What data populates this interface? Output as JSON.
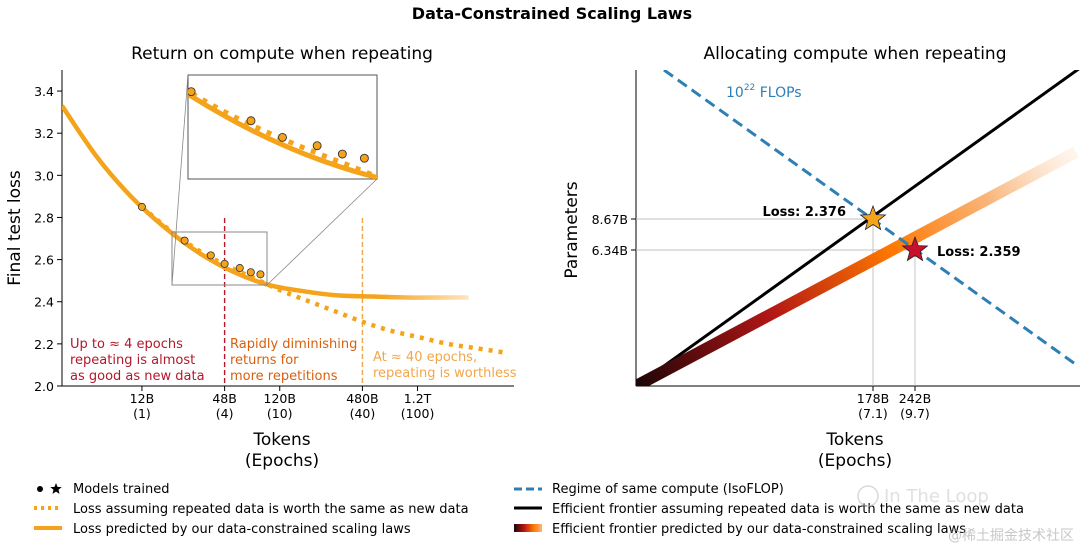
{
  "figure_title": "Data-Constrained Scaling Laws",
  "watermark": {
    "line1": "In The Loop",
    "line2": "@稀土掘金技术社区"
  },
  "legend": {
    "left": [
      {
        "marker": "dot-star",
        "label": "Models trained"
      },
      {
        "marker": "dotted-orange",
        "label": "Loss assuming repeated data is worth the same as new data"
      },
      {
        "marker": "solid-orange",
        "label": "Loss predicted by our data-constrained scaling laws"
      }
    ],
    "right": [
      {
        "marker": "dashed-blue",
        "label": "Regime of same compute (IsoFLOP)"
      },
      {
        "marker": "solid-black",
        "label": "Efficient frontier assuming repeated data is worth the same as new data"
      },
      {
        "marker": "gradient",
        "label": "Efficient frontier predicted by our data-constrained scaling laws"
      }
    ]
  },
  "colors": {
    "orange": "#f5a31a",
    "dark_red": "#b2182b",
    "mid_orange": "#e08a2a",
    "light_orange": "#f2a64a",
    "blue": "#2e7fb5",
    "black": "#000000",
    "grid": "#bbbbbb"
  },
  "chart_data": [
    {
      "type": "line",
      "title": "Return on compute when repeating",
      "xlabel": "Tokens\n(Epochs)",
      "ylabel": "Final test loss",
      "ylim": [
        2.0,
        3.5
      ],
      "yticks": [
        2.0,
        2.2,
        2.4,
        2.6,
        2.8,
        3.0,
        3.2,
        3.4
      ],
      "xticks": [
        {
          "tokens": "12B",
          "epochs": "(1)",
          "log10_tokens": 10.08
        },
        {
          "tokens": "48B",
          "epochs": "(4)",
          "log10_tokens": 10.68
        },
        {
          "tokens": "120B",
          "epochs": "(10)",
          "log10_tokens": 11.08
        },
        {
          "tokens": "480B",
          "epochs": "(40)",
          "log10_tokens": 11.68
        },
        {
          "tokens": "1.2T",
          "epochs": "(100)",
          "log10_tokens": 12.08
        }
      ],
      "xlim_log10": [
        9.5,
        12.78
      ],
      "series": [
        {
          "name": "Loss predicted by our data-constrained scaling laws",
          "style": "solid",
          "color": "#f5a31a",
          "points": [
            [
              9.5,
              3.33
            ],
            [
              9.75,
              3.09
            ],
            [
              10.0,
              2.9
            ],
            [
              10.25,
              2.75
            ],
            [
              10.5,
              2.63
            ],
            [
              10.75,
              2.54
            ],
            [
              11.0,
              2.48
            ],
            [
              11.25,
              2.45
            ],
            [
              11.5,
              2.43
            ],
            [
              11.75,
              2.425
            ],
            [
              12.0,
              2.42
            ],
            [
              12.3,
              2.42
            ],
            [
              12.45,
              2.42
            ]
          ]
        },
        {
          "name": "Loss assuming repeated data is worth the same as new data",
          "style": "dotted",
          "color": "#f5a31a",
          "points": [
            [
              10.08,
              2.85
            ],
            [
              10.3,
              2.73
            ],
            [
              10.5,
              2.64
            ],
            [
              10.7,
              2.57
            ],
            [
              10.9,
              2.51
            ],
            [
              11.1,
              2.45
            ],
            [
              11.3,
              2.4
            ],
            [
              11.5,
              2.35
            ],
            [
              11.7,
              2.3
            ],
            [
              11.9,
              2.26
            ],
            [
              12.1,
              2.23
            ],
            [
              12.3,
              2.2
            ],
            [
              12.5,
              2.18
            ],
            [
              12.7,
              2.16
            ]
          ]
        }
      ],
      "models": [
        [
          10.08,
          2.85
        ],
        [
          10.39,
          2.69
        ],
        [
          10.58,
          2.62
        ],
        [
          10.68,
          2.58
        ],
        [
          10.79,
          2.56
        ],
        [
          10.87,
          2.54
        ],
        [
          10.94,
          2.53
        ]
      ],
      "vlines": [
        {
          "log10_tokens": 10.68,
          "color": "#b2182b"
        },
        {
          "log10_tokens": 11.68,
          "color": "#f2a64a"
        }
      ],
      "annotations": [
        {
          "lines": [
            "Up to ≈ 4 epochs",
            "repeating is almost",
            "as good as new data"
          ],
          "color": "#b2182b"
        },
        {
          "lines": [
            "Rapidly diminishing",
            "returns for",
            "more repetitions"
          ],
          "color": "#d95f0e"
        },
        {
          "lines": [
            "At ≈ 40 epochs,",
            "repeating is worthless"
          ],
          "color": "#f2a64a"
        }
      ],
      "inset": {
        "xlim_log10": [
          10.38,
          10.98
        ],
        "ylim": [
          2.48,
          2.73
        ]
      }
    },
    {
      "type": "line",
      "title": "Allocating compute when repeating",
      "xlabel": "Tokens\n(Epochs)",
      "ylabel": "Parameters",
      "isoflop_label": "10²² FLOPs",
      "xticks": [
        {
          "tokens": "178B",
          "epochs": "(7.1)"
        },
        {
          "tokens": "242B",
          "epochs": "(9.7)"
        }
      ],
      "yticks": [
        "8.67B",
        "6.34B"
      ],
      "points": [
        {
          "marker": "star",
          "color": "#f5a31a",
          "tokens_B": 178,
          "params_B": 8.67,
          "label": "Loss: 2.376"
        },
        {
          "marker": "star",
          "color": "#c8102e",
          "tokens_B": 242,
          "params_B": 6.34,
          "label": "Loss: 2.359"
        }
      ],
      "series": [
        {
          "name": "Regime of same compute (IsoFLOP)",
          "style": "dashed",
          "color": "#2e7fb5"
        },
        {
          "name": "Efficient frontier assuming repeated data is worth the same as new data",
          "style": "solid",
          "color": "#000000"
        },
        {
          "name": "Efficient frontier predicted by our data-constrained scaling laws",
          "style": "gradient",
          "colors": [
            "#2a0a0a",
            "#c8102e",
            "#ff7a00",
            "#fde7d0"
          ]
        }
      ]
    }
  ]
}
